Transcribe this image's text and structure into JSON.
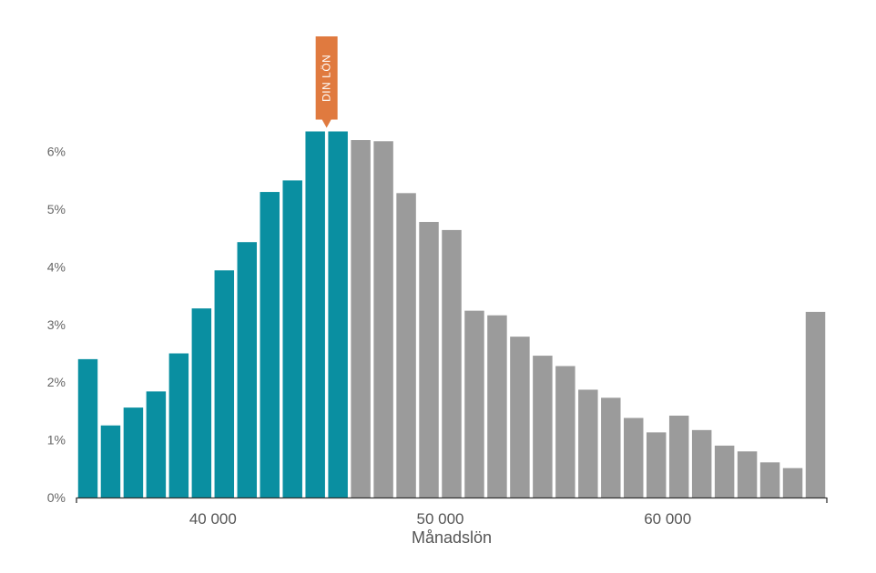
{
  "chart_data": {
    "type": "bar",
    "xlabel": "Månadslön",
    "ylabel": "",
    "x": [
      34500,
      35500,
      36500,
      37500,
      38500,
      39500,
      40500,
      41500,
      42500,
      43500,
      44500,
      45500,
      46500,
      47500,
      48500,
      49500,
      50500,
      51500,
      52500,
      53500,
      54500,
      55500,
      56500,
      57500,
      58500,
      59500,
      60500,
      61500,
      62500,
      63500,
      64500,
      65500,
      66500
    ],
    "values": [
      2.4,
      1.25,
      1.56,
      1.84,
      2.5,
      3.28,
      3.94,
      4.43,
      5.3,
      5.5,
      6.35,
      6.35,
      6.2,
      6.18,
      5.28,
      4.78,
      4.64,
      3.24,
      3.16,
      2.79,
      2.46,
      2.28,
      1.87,
      1.73,
      1.38,
      1.13,
      1.42,
      1.17,
      0.9,
      0.8,
      0.61,
      0.51,
      3.22
    ],
    "highlight_count": 12,
    "highlight_color": "#0A8FA1",
    "other_color": "#9B9B9B",
    "marker_color": "#E07A3F",
    "bin_width": 1000,
    "xlim": [
      34000,
      67000
    ],
    "ylim": [
      0,
      6.5
    ],
    "yticks": [
      {
        "value": 0,
        "label": "0%"
      },
      {
        "value": 1,
        "label": "1%"
      },
      {
        "value": 2,
        "label": "2%"
      },
      {
        "value": 3,
        "label": "3%"
      },
      {
        "value": 4,
        "label": "4%"
      },
      {
        "value": 5,
        "label": "5%"
      },
      {
        "value": 6,
        "label": "6%"
      }
    ],
    "xticks": [
      {
        "value": 40000,
        "label": "40 000"
      },
      {
        "value": 50000,
        "label": "50 000"
      },
      {
        "value": 60000,
        "label": "60 000"
      }
    ],
    "marker": {
      "label": "DIN LÖN",
      "bar_index": 10
    },
    "grid": false
  }
}
